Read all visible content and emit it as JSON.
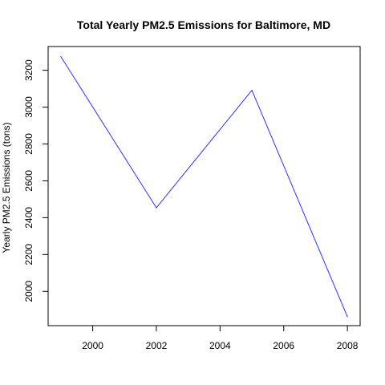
{
  "chart_data": {
    "type": "line",
    "title": "Total Yearly PM2.5 Emissions for Baltimore, MD",
    "xlabel": "",
    "ylabel": "Yearly PM2.5 Emissions (tons)",
    "xlim": [
      1998.6,
      2008.4
    ],
    "ylim": [
      1814,
      3329
    ],
    "xticks": [
      2000,
      2002,
      2004,
      2006,
      2008
    ],
    "yticks": [
      2000,
      2200,
      2400,
      2600,
      2800,
      3000,
      3200
    ],
    "grid": false,
    "series": [
      {
        "color": "#3030ff",
        "x": [
          1999,
          2002,
          2005,
          2008
        ],
        "y": [
          3274.2,
          2453.9,
          3091.4,
          1862.3
        ]
      }
    ]
  }
}
